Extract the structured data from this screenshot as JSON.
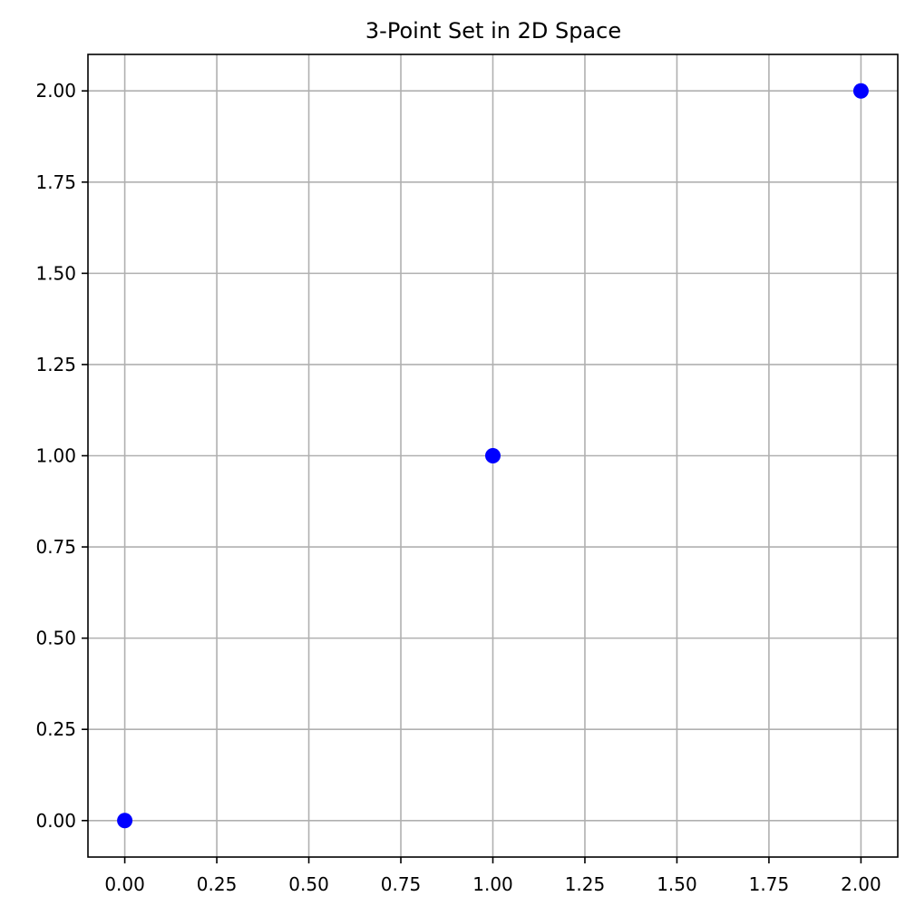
{
  "chart_data": {
    "type": "scatter",
    "title": "3-Point Set in 2D Space",
    "xlabel": "",
    "ylabel": "",
    "x": [
      0,
      1,
      2
    ],
    "y": [
      0,
      1,
      2
    ],
    "xlim": [
      -0.1,
      2.1
    ],
    "ylim": [
      -0.1,
      2.1
    ],
    "x_ticks": [
      0,
      0.25,
      0.5,
      0.75,
      1,
      1.25,
      1.5,
      1.75,
      2
    ],
    "y_ticks": [
      0,
      0.25,
      0.5,
      0.75,
      1,
      1.25,
      1.5,
      1.75,
      2
    ],
    "x_tick_labels": [
      "0.00",
      "0.25",
      "0.50",
      "0.75",
      "1.00",
      "1.25",
      "1.50",
      "1.75",
      "2.00"
    ],
    "y_tick_labels": [
      "0.00",
      "0.25",
      "0.50",
      "0.75",
      "1.00",
      "1.25",
      "1.50",
      "1.75",
      "2.00"
    ],
    "grid": true,
    "marker_color": "#0000ff",
    "grid_color": "#b0b0b0"
  }
}
